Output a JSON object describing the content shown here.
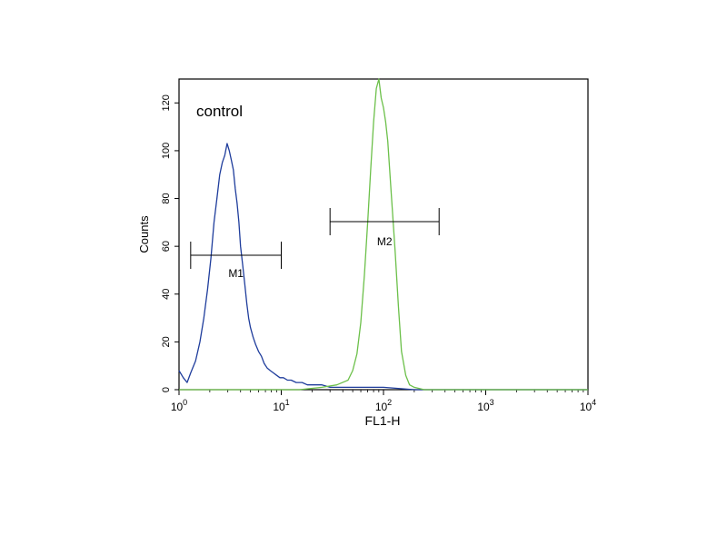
{
  "chart_data": {
    "type": "line",
    "title": "",
    "annotation": "control",
    "xlabel": "FL1-H",
    "ylabel": "Counts",
    "x_scale": "log",
    "xlim": [
      1,
      10000
    ],
    "ylim": [
      0,
      130
    ],
    "x_ticks": [
      {
        "base": "10",
        "exp": "0"
      },
      {
        "base": "10",
        "exp": "1"
      },
      {
        "base": "10",
        "exp": "2"
      },
      {
        "base": "10",
        "exp": "3"
      },
      {
        "base": "10",
        "exp": "4"
      }
    ],
    "y_ticks": [
      "0",
      "20",
      "40",
      "60",
      "80",
      "100",
      "120"
    ],
    "y_tick_values": [
      0,
      20,
      40,
      60,
      80,
      100,
      120
    ],
    "colors": {
      "blue": "#1f3d9c",
      "green": "#6cc04a",
      "axis": "#000000"
    },
    "series": [
      {
        "color": "#1f3d9c",
        "x": [
          1.0,
          1.1,
          1.2,
          1.3,
          1.45,
          1.6,
          1.75,
          1.9,
          2.05,
          2.2,
          2.35,
          2.5,
          2.65,
          2.8,
          2.95,
          3.1,
          3.25,
          3.4,
          3.55,
          3.7,
          3.85,
          4.0,
          4.2,
          4.4,
          4.6,
          4.8,
          5.0,
          5.3,
          5.6,
          6.0,
          6.4,
          6.8,
          7.3,
          7.8,
          8.4,
          9.0,
          9.7,
          10.5,
          11.5,
          12.5,
          14,
          16,
          18,
          21,
          25,
          30,
          40,
          60,
          100,
          200,
          500,
          1000,
          10000
        ],
        "y": [
          8,
          5,
          3,
          7,
          12,
          20,
          30,
          42,
          55,
          70,
          80,
          90,
          95,
          98,
          103,
          100,
          96,
          92,
          84,
          78,
          70,
          60,
          52,
          44,
          36,
          30,
          26,
          22,
          19,
          16,
          14,
          11,
          9,
          8,
          7,
          6,
          5,
          5,
          4,
          4,
          3,
          3,
          2,
          2,
          2,
          1,
          1,
          1,
          1,
          0,
          0,
          0,
          0
        ]
      },
      {
        "color": "#6cc04a",
        "x": [
          1.0,
          5,
          15,
          25,
          35,
          45,
          50,
          55,
          60,
          65,
          70,
          75,
          80,
          85,
          90,
          95,
          100,
          105,
          110,
          115,
          120,
          130,
          140,
          150,
          165,
          180,
          200,
          250,
          400,
          1000,
          3000,
          10000
        ],
        "y": [
          0,
          0,
          0,
          1,
          2,
          4,
          8,
          15,
          28,
          48,
          70,
          92,
          112,
          126,
          130,
          122,
          118,
          112,
          104,
          92,
          80,
          58,
          35,
          16,
          6,
          2,
          1,
          0,
          0,
          0,
          0,
          0
        ]
      }
    ],
    "markers": [
      {
        "name": "M1",
        "x_range": [
          1.3,
          10
        ]
      },
      {
        "name": "M2",
        "x_range": [
          30,
          350
        ]
      }
    ]
  }
}
